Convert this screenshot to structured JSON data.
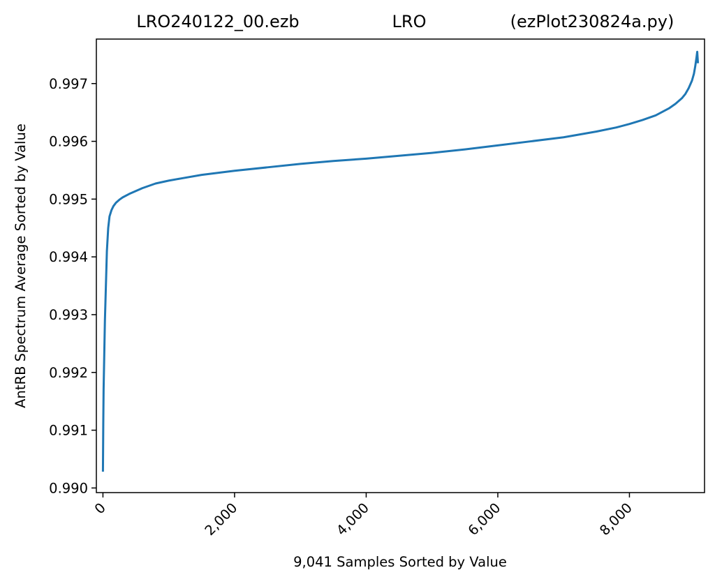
{
  "chart_data": {
    "type": "line",
    "title_left": "LRO240122_00.ezb",
    "title_center": "LRO",
    "title_right": "(ezPlot230824a.py)",
    "xlabel": "9,041 Samples Sorted by Value",
    "ylabel": "AntRB Spectrum Average Sorted by Value",
    "xlim": [
      -100,
      9141
    ],
    "ylim": [
      0.98992,
      0.99777
    ],
    "xticks": [
      0,
      2000,
      4000,
      6000,
      8000
    ],
    "xtick_labels": [
      "0",
      "2,000",
      "4,000",
      "6,000",
      "8,000"
    ],
    "yticks": [
      0.99,
      0.991,
      0.992,
      0.993,
      0.994,
      0.995,
      0.996,
      0.997
    ],
    "ytick_labels": [
      "0.990",
      "0.991",
      "0.992",
      "0.993",
      "0.994",
      "0.995",
      "0.996",
      "0.997"
    ],
    "grid": false,
    "series": [
      {
        "color": "#1f77b4",
        "x": [
          0,
          5,
          10,
          20,
          30,
          40,
          50,
          60,
          80,
          100,
          130,
          160,
          200,
          250,
          300,
          400,
          500,
          600,
          800,
          1000,
          1200,
          1500,
          2000,
          2500,
          3000,
          3500,
          4000,
          4500,
          5000,
          5500,
          6000,
          6500,
          7000,
          7500,
          7800,
          8000,
          8200,
          8400,
          8600,
          8700,
          8800,
          8850,
          8900,
          8950,
          8980,
          9000,
          9020,
          9030,
          9040
        ],
        "y": [
          0.9903,
          0.9911,
          0.9917,
          0.9923,
          0.9929,
          0.9933,
          0.9937,
          0.9941,
          0.9945,
          0.9947,
          0.99481,
          0.99488,
          0.99494,
          0.99499,
          0.99503,
          0.99509,
          0.99514,
          0.99519,
          0.99527,
          0.99532,
          0.99536,
          0.99542,
          0.99549,
          0.99555,
          0.99561,
          0.99566,
          0.9957,
          0.99575,
          0.9958,
          0.99586,
          0.99593,
          0.996,
          0.99607,
          0.99617,
          0.99624,
          0.9963,
          0.99637,
          0.99645,
          0.99657,
          0.99665,
          0.99675,
          0.99682,
          0.99692,
          0.99705,
          0.99717,
          0.9973,
          0.99746,
          0.99755,
          0.99737
        ]
      }
    ]
  }
}
